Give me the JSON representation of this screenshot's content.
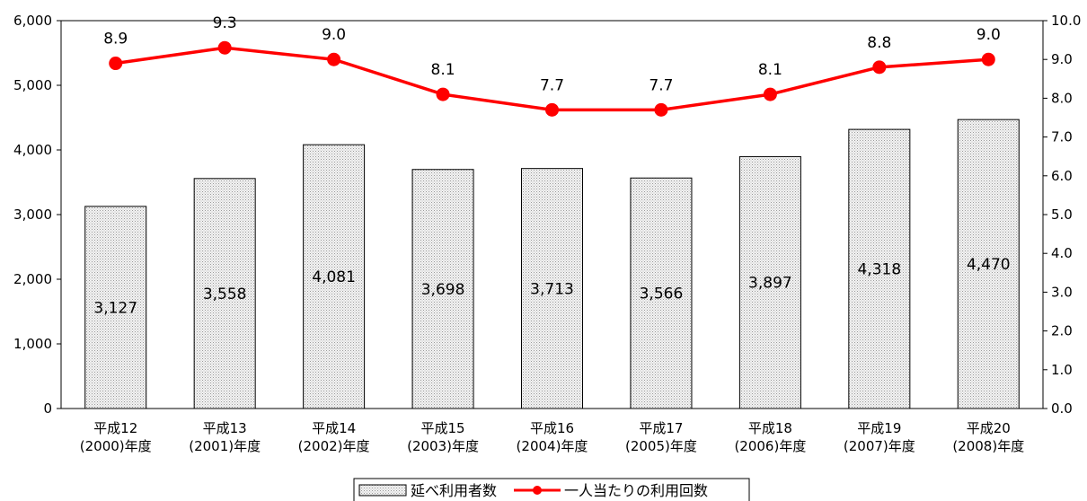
{
  "chart_data": {
    "type": "bar",
    "categories": [
      [
        "平成12",
        "(2000)年度"
      ],
      [
        "平成13",
        "(2001)年度"
      ],
      [
        "平成14",
        "(2002)年度"
      ],
      [
        "平成15",
        "(2003)年度"
      ],
      [
        "平成16",
        "(2004)年度"
      ],
      [
        "平成17",
        "(2005)年度"
      ],
      [
        "平成18",
        "(2006)年度"
      ],
      [
        "平成19",
        "(2007)年度"
      ],
      [
        "平成20",
        "(2008)年度"
      ]
    ],
    "series": [
      {
        "name": "延べ利用者数",
        "type": "bar",
        "axis": "left",
        "values": [
          3127,
          3558,
          4081,
          3698,
          3713,
          3566,
          3897,
          4318,
          4470
        ],
        "labels": [
          "3,127",
          "3,558",
          "4,081",
          "3,698",
          "3,713",
          "3,566",
          "3,897",
          "4,318",
          "4,470"
        ],
        "color": "#d9d9d9"
      },
      {
        "name": "一人当たりの利用回数",
        "type": "line",
        "axis": "right",
        "values": [
          8.9,
          9.3,
          9.0,
          8.1,
          7.7,
          7.7,
          8.1,
          8.8,
          9.0
        ],
        "labels": [
          "8.9",
          "9.3",
          "9.0",
          "8.1",
          "7.7",
          "7.7",
          "8.1",
          "8.8",
          "9.0"
        ],
        "color": "#ff0000"
      }
    ],
    "y_left": {
      "range": [
        0,
        6000
      ],
      "ticks": [
        0,
        1000,
        2000,
        3000,
        4000,
        5000,
        6000
      ],
      "tick_labels": [
        "0",
        "1,000",
        "2,000",
        "3,000",
        "4,000",
        "5,000",
        "6,000"
      ]
    },
    "y_right": {
      "range": [
        0,
        10
      ],
      "ticks": [
        0,
        1,
        2,
        3,
        4,
        5,
        6,
        7,
        8,
        9,
        10
      ],
      "tick_labels": [
        "0.0",
        "1.0",
        "2.0",
        "3.0",
        "4.0",
        "5.0",
        "6.0",
        "7.0",
        "8.0",
        "9.0",
        "10.0"
      ]
    },
    "grid": false,
    "legend_position": "bottom-center"
  }
}
